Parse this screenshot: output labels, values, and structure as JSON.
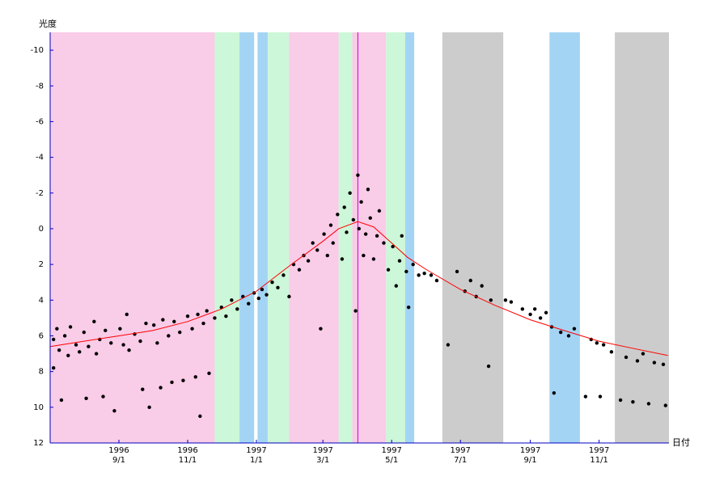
{
  "chart_data": {
    "type": "scatter",
    "ylabel": "光度",
    "xlabel": "日付",
    "xlim": [
      "1996-07-02",
      "1998-01-02"
    ],
    "ylim": [
      12,
      -11
    ],
    "yticks": [
      -10,
      -8,
      -6,
      -4,
      -2,
      0,
      2,
      4,
      6,
      8,
      10,
      12
    ],
    "xticks": [
      {
        "value": "1996-09-01",
        "label": "1996\n9/1"
      },
      {
        "value": "1996-11-01",
        "label": "1996\n11/1"
      },
      {
        "value": "1997-01-01",
        "label": "1997\n1/1"
      },
      {
        "value": "1997-03-01",
        "label": "1997\n3/1"
      },
      {
        "value": "1997-05-01",
        "label": "1997\n5/1"
      },
      {
        "value": "1997-07-01",
        "label": "1997\n7/1"
      },
      {
        "value": "1997-09-01",
        "label": "1997\n9/1"
      },
      {
        "value": "1997-11-01",
        "label": "1997\n11/1"
      }
    ],
    "axis_color": "#0000c0",
    "bands": [
      {
        "start": "1996-07-02",
        "end": "1996-11-25",
        "color": "#f9cce8"
      },
      {
        "start": "1996-11-25",
        "end": "1996-12-17",
        "color": "#ccf7d8"
      },
      {
        "start": "1996-12-17",
        "end": "1996-12-30",
        "color": "#a4d4f4"
      },
      {
        "start": "1997-01-02",
        "end": "1997-01-11",
        "color": "#a4d4f4"
      },
      {
        "start": "1997-01-11",
        "end": "1997-01-30",
        "color": "#ccf7d8"
      },
      {
        "start": "1997-01-30",
        "end": "1997-03-15",
        "color": "#f9cce8"
      },
      {
        "start": "1997-03-15",
        "end": "1997-03-27",
        "color": "#ccf7d8"
      },
      {
        "start": "1997-03-27",
        "end": "1997-04-26",
        "color": "#f9cce8"
      },
      {
        "start": "1997-04-26",
        "end": "1997-05-13",
        "color": "#ccf7d8"
      },
      {
        "start": "1997-05-13",
        "end": "1997-05-21",
        "color": "#a4d4f4"
      },
      {
        "start": "1997-06-15",
        "end": "1997-08-08",
        "color": "#cccccc"
      },
      {
        "start": "1997-09-18",
        "end": "1997-10-15",
        "color": "#a4d4f4"
      },
      {
        "start": "1997-11-15",
        "end": "1998-01-02",
        "color": "#cccccc"
      }
    ],
    "marker_line": {
      "x": "1997-04-01",
      "color": "#cc00cc"
    },
    "fit": {
      "color": "#ff0000",
      "x": [
        "1996-07-02",
        "1996-08-01",
        "1996-09-01",
        "1996-10-01",
        "1996-11-01",
        "1996-12-01",
        "1997-01-01",
        "1997-02-01",
        "1997-03-01",
        "1997-03-15",
        "1997-04-01",
        "1997-04-15",
        "1997-05-01",
        "1997-05-15",
        "1997-06-01",
        "1997-07-01",
        "1997-08-01",
        "1997-09-01",
        "1997-10-01",
        "1997-11-01",
        "1997-12-01",
        "1998-01-01"
      ],
      "values": [
        6.6,
        6.3,
        6.0,
        5.7,
        5.2,
        4.5,
        3.5,
        2.0,
        0.7,
        0.0,
        -0.4,
        -0.1,
        0.8,
        1.6,
        2.3,
        3.4,
        4.3,
        5.1,
        5.7,
        6.3,
        6.7,
        7.1
      ]
    },
    "points": {
      "color": "#000000",
      "x": [
        "1996-07-05",
        "1996-07-05",
        "1996-07-08",
        "1996-07-10",
        "1996-07-12",
        "1996-07-15",
        "1996-07-18",
        "1996-07-20",
        "1996-07-25",
        "1996-07-28",
        "1996-08-01",
        "1996-08-03",
        "1996-08-05",
        "1996-08-10",
        "1996-08-12",
        "1996-08-15",
        "1996-08-18",
        "1996-08-20",
        "1996-08-25",
        "1996-08-28",
        "1996-09-02",
        "1996-09-05",
        "1996-09-08",
        "1996-09-10",
        "1996-09-15",
        "1996-09-20",
        "1996-09-22",
        "1996-09-25",
        "1996-09-28",
        "1996-10-02",
        "1996-10-05",
        "1996-10-08",
        "1996-10-10",
        "1996-10-15",
        "1996-10-18",
        "1996-10-20",
        "1996-10-25",
        "1996-10-28",
        "1996-11-01",
        "1996-11-05",
        "1996-11-08",
        "1996-11-10",
        "1996-11-12",
        "1996-11-15",
        "1996-11-18",
        "1996-11-20",
        "1996-11-25",
        "1996-12-01",
        "1996-12-05",
        "1996-12-10",
        "1996-12-15",
        "1996-12-20",
        "1996-12-25",
        "1996-12-30",
        "1997-01-03",
        "1997-01-06",
        "1997-01-10",
        "1997-01-15",
        "1997-01-20",
        "1997-01-25",
        "1997-01-30",
        "1997-02-03",
        "1997-02-08",
        "1997-02-12",
        "1997-02-16",
        "1997-02-20",
        "1997-02-24",
        "1997-02-27",
        "1997-03-02",
        "1997-03-05",
        "1997-03-08",
        "1997-03-10",
        "1997-03-14",
        "1997-03-18",
        "1997-03-20",
        "1997-03-22",
        "1997-03-25",
        "1997-03-28",
        "1997-03-30",
        "1997-04-01",
        "1997-04-02",
        "1997-04-04",
        "1997-04-06",
        "1997-04-08",
        "1997-04-10",
        "1997-04-12",
        "1997-04-15",
        "1997-04-18",
        "1997-04-20",
        "1997-04-24",
        "1997-04-28",
        "1997-05-02",
        "1997-05-05",
        "1997-05-08",
        "1997-05-10",
        "1997-05-14",
        "1997-05-16",
        "1997-05-20",
        "1997-05-25",
        "1997-05-30",
        "1997-06-05",
        "1997-06-10",
        "1997-06-20",
        "1997-06-28",
        "1997-07-05",
        "1997-07-10",
        "1997-07-15",
        "1997-07-20",
        "1997-07-26",
        "1997-07-28",
        "1997-08-10",
        "1997-08-15",
        "1997-08-25",
        "1997-09-01",
        "1997-09-05",
        "1997-09-10",
        "1997-09-15",
        "1997-09-20",
        "1997-09-22",
        "1997-09-28",
        "1997-10-05",
        "1997-10-10",
        "1997-10-20",
        "1997-10-25",
        "1997-10-30",
        "1997-11-02",
        "1997-11-05",
        "1997-11-12",
        "1997-11-20",
        "1997-11-25",
        "1997-12-01",
        "1997-12-05",
        "1997-12-10",
        "1997-12-15",
        "1997-12-20",
        "1997-12-28",
        "1997-12-30"
      ],
      "values": [
        6.2,
        7.8,
        5.6,
        6.8,
        9.6,
        6.0,
        7.1,
        5.5,
        6.5,
        6.9,
        5.8,
        9.5,
        6.6,
        5.2,
        7.0,
        6.2,
        9.4,
        5.7,
        6.4,
        10.2,
        5.6,
        6.5,
        4.8,
        6.8,
        5.9,
        6.3,
        9.0,
        5.3,
        10.0,
        5.4,
        6.4,
        8.9,
        5.1,
        6.0,
        8.6,
        5.2,
        5.8,
        8.5,
        4.9,
        5.6,
        8.3,
        4.8,
        10.5,
        5.3,
        4.6,
        8.1,
        5.0,
        4.4,
        4.9,
        4.0,
        4.5,
        3.8,
        4.2,
        3.6,
        3.9,
        3.4,
        3.7,
        3.0,
        3.3,
        2.6,
        3.8,
        2.0,
        2.3,
        1.5,
        1.8,
        0.8,
        1.2,
        5.6,
        0.3,
        1.5,
        -0.2,
        0.8,
        -0.8,
        1.7,
        -1.2,
        0.2,
        -2.0,
        -0.5,
        4.6,
        -3.0,
        0.0,
        -1.5,
        1.5,
        0.3,
        -2.2,
        -0.6,
        1.7,
        0.4,
        -1.0,
        0.8,
        2.3,
        1.0,
        3.2,
        1.8,
        0.4,
        2.4,
        4.4,
        2.0,
        2.6,
        2.5,
        2.6,
        2.9,
        6.5,
        2.4,
        3.5,
        2.9,
        3.8,
        3.2,
        7.7,
        4.0,
        4.0,
        4.1,
        4.5,
        4.8,
        4.5,
        5.0,
        4.7,
        5.5,
        9.2,
        5.8,
        6.0,
        5.6,
        9.4,
        6.2,
        6.4,
        9.4,
        6.5,
        6.9,
        9.6,
        7.2,
        9.7,
        7.4,
        7.0,
        9.8,
        7.5,
        7.6,
        9.9
      ]
    }
  }
}
